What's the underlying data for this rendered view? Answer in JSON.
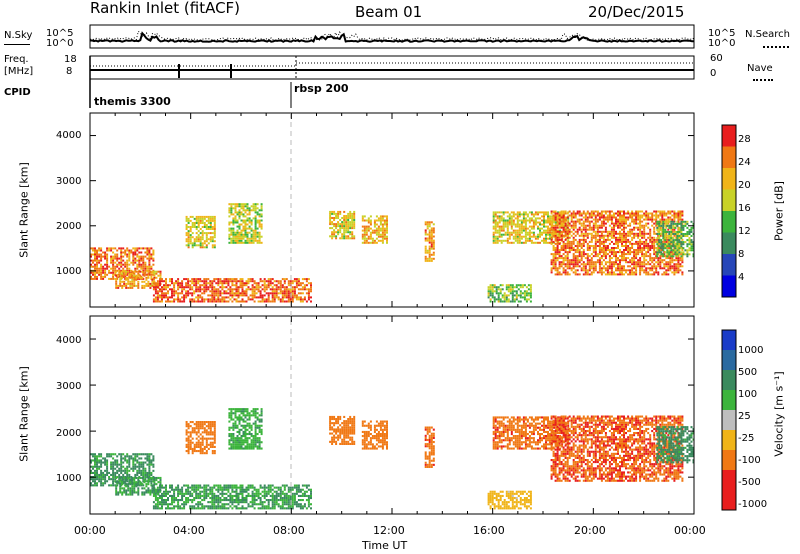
{
  "header": {
    "station": "Rankin Inlet (fitACF)",
    "beam": "Beam 01",
    "date": "20/Dec/2015"
  },
  "summary": {
    "nsky_label": "N.Sky",
    "nsearch_label": "N.Search",
    "freq_label_line1": "Freq.",
    "freq_label_line2": "[MHz]",
    "nave_label": "Nave",
    "cpid_label": "CPID",
    "left_ticks_top": [
      "10^5",
      "10^0"
    ],
    "right_ticks_top": [
      "10^5",
      "10^0"
    ],
    "freq_ticks": [
      "18",
      "8"
    ],
    "nave_ticks": [
      "60",
      "0"
    ],
    "cpid_segments": [
      "themis 3300",
      "rbsp 200"
    ]
  },
  "power_panel": {
    "ylabel": "Slant Range [km]",
    "yticks": [
      "4000",
      "3000",
      "2000",
      "1000"
    ],
    "colorbar_label": "Power [dB]",
    "colorbar_ticks": [
      "28",
      "24",
      "20",
      "16",
      "12",
      "8",
      "4"
    ],
    "colors": [
      "#0000e0",
      "#2646b8",
      "#3a8a5e",
      "#3cb43c",
      "#c8d228",
      "#f0b418",
      "#f07814",
      "#e81e1e"
    ]
  },
  "velocity_panel": {
    "ylabel": "Slant Range [km]",
    "yticks": [
      "4000",
      "3000",
      "2000",
      "1000"
    ],
    "colorbar_label": "Velocity [m s⁻¹]",
    "colorbar_ticks": [
      "1000",
      "500",
      "100",
      "25",
      "-25",
      "-100",
      "-500",
      "-1000"
    ],
    "colors": [
      "#1a3cc8",
      "#2a6aa0",
      "#3a8a5e",
      "#3cb43c",
      "#bebebe",
      "#f0b418",
      "#f07814",
      "#e81e1e"
    ]
  },
  "xaxis": {
    "ticks": [
      "00:00",
      "04:00",
      "08:00",
      "12:00",
      "16:00",
      "20:00",
      "00:00"
    ],
    "label": "Time UT"
  },
  "chart_data": {
    "type": "heatmap",
    "title": "Rankin Inlet (fitACF)  Beam 01  20/Dec/2015",
    "xlabel": "Time UT",
    "ylabel": "Slant Range [km]",
    "xlim": [
      "00:00",
      "24:00"
    ],
    "ylim_km": [
      200,
      4500
    ],
    "panels": [
      {
        "name": "Power [dB]",
        "range": [
          0,
          30
        ]
      },
      {
        "name": "Velocity [m s-1]",
        "range": [
          -1000,
          1000
        ]
      }
    ],
    "cpid_changes": [
      {
        "time": "00:00",
        "label": "themis 3300"
      },
      {
        "time": "08:00",
        "label": "rbsp 200"
      }
    ],
    "echo_regions": [
      {
        "t": [
          0.0,
          2.5
        ],
        "r": [
          800,
          1500
        ],
        "power": 26,
        "velocity": 120
      },
      {
        "t": [
          1.0,
          2.8
        ],
        "r": [
          600,
          1000
        ],
        "power": 24,
        "velocity": 100
      },
      {
        "t": [
          2.5,
          8.8
        ],
        "r": [
          300,
          800
        ],
        "power": 27,
        "velocity": 100
      },
      {
        "t": [
          3.8,
          5.0
        ],
        "r": [
          1500,
          2200
        ],
        "power": 20,
        "velocity": -300
      },
      {
        "t": [
          5.5,
          6.8
        ],
        "r": [
          1600,
          2500
        ],
        "power": 18,
        "velocity": 80
      },
      {
        "t": [
          9.5,
          10.5
        ],
        "r": [
          1700,
          2300
        ],
        "power": 20,
        "velocity": -200
      },
      {
        "t": [
          10.8,
          11.8
        ],
        "r": [
          1600,
          2200
        ],
        "power": 22,
        "velocity": -300
      },
      {
        "t": [
          13.3,
          13.7
        ],
        "r": [
          1200,
          2100
        ],
        "power": 24,
        "velocity": -400
      },
      {
        "t": [
          15.8,
          17.5
        ],
        "r": [
          300,
          700
        ],
        "power": 16,
        "velocity": -40
      },
      {
        "t": [
          16.0,
          19.0
        ],
        "r": [
          1600,
          2300
        ],
        "power": 20,
        "velocity": -400
      },
      {
        "t": [
          18.3,
          23.5
        ],
        "r": [
          900,
          2300
        ],
        "power": 26,
        "velocity": -450
      },
      {
        "t": [
          22.5,
          24.0
        ],
        "r": [
          1300,
          2100
        ],
        "power": 14,
        "velocity": 150
      }
    ]
  }
}
